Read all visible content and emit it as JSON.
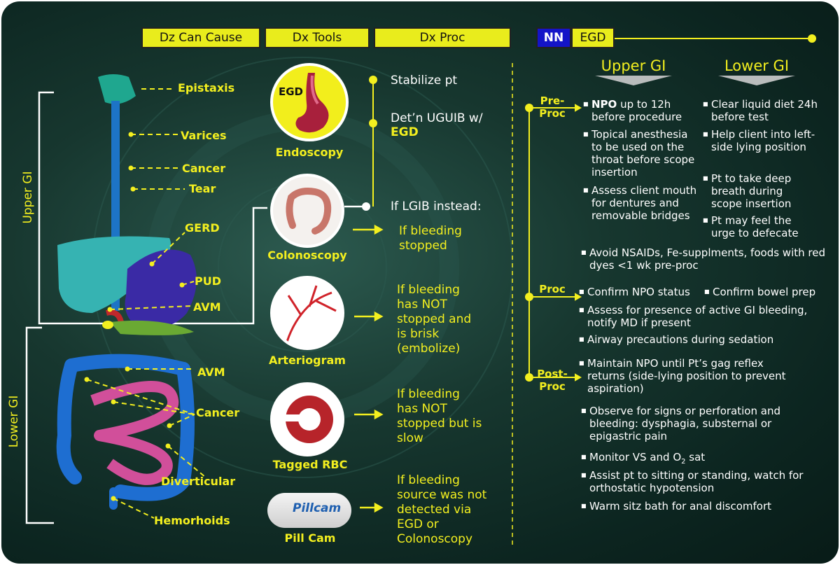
{
  "headers": {
    "dz": "Dz Can Cause",
    "dx_tools": "Dx Tools",
    "dx_proc": "Dx Proc",
    "nn": "NN",
    "egd": "EGD"
  },
  "side_labels": {
    "upper": "Upper GI",
    "lower": "Lower GI"
  },
  "dz_labels": {
    "epistaxis": "Epistaxis",
    "varices": "Varices",
    "cancer_upper": "Cancer",
    "tear": "Tear",
    "gerd": "GERD",
    "pud": "PUD",
    "avm_upper": "AVM",
    "avm_lower": "AVM",
    "cancer_lower": "Cancer",
    "diverticular": "Diverticular",
    "hemorrhoids": "Hemorhoids"
  },
  "tools": {
    "egd_badge": "EGD",
    "endoscopy": "Endoscopy",
    "colonoscopy": "Colonoscopy",
    "arteriogram": "Arteriogram",
    "tagged_rbc": "Tagged RBC",
    "pill_cam": "Pill Cam",
    "pillcam_brand": "Pillcam"
  },
  "proc": {
    "stabilize": "Stabilize pt",
    "determine_prefix": "Det’n UGUIB w/",
    "determine_egd": "EGD",
    "lgib": "If LGIB instead:",
    "bleed_stopped": "If bleeding stopped",
    "bleed_brisk": "If bleeding has NOT stopped and is brisk (embolize)",
    "bleed_slow": "If bleeding has NOT stopped but is slow",
    "bleed_undetected": "If bleeding source was not detected via EGD or Colonoscopy"
  },
  "nn": {
    "upper_gi": "Upper GI",
    "lower_gi": "Lower GI",
    "sections": {
      "pre": "Pre-Proc",
      "proc": "Proc",
      "post": "Post-Proc"
    },
    "pre_upper": [
      {
        "bold": "NPO",
        "text": " up to 12h before procedure"
      },
      {
        "bold": "",
        "text": "Topical anesthesia to be used on the throat before scope insertion"
      },
      {
        "bold": "",
        "text": "Assess client mouth for dentures and removable bridges"
      }
    ],
    "pre_lower": [
      "Clear liquid diet 24h before test",
      "Help client into left-side lying position",
      "Pt to take deep breath during scope insertion",
      "Pt may feel the urge to defecate"
    ],
    "pre_common": "Avoid NSAIDs, Fe-supplments, foods with red dyes <1 wk pre-proc",
    "proc_items": [
      "Confirm NPO status",
      "Confirm bowel prep",
      "Assess for presence of active GI bleeding, notify MD if present",
      "Airway precautions during sedation"
    ],
    "post_items": [
      "Maintain NPO until Pt’s gag reflex returns (side-lying position to prevent aspiration)",
      "Observe for signs or perforation and bleeding: dysphagia, substernal or epigastric pain",
      "Monitor VS and O",
      "Assist pt to sitting or standing, watch for orthostatic hypotension",
      "Warm sitz bath for anal discomfort"
    ],
    "o2_sub": "2",
    "o2_suffix": " sat"
  },
  "colors": {
    "accent_yellow": "#f3ef1f",
    "header_yellow": "#e9ec1c",
    "nn_blue": "#1414c8",
    "background": "#17372f"
  }
}
